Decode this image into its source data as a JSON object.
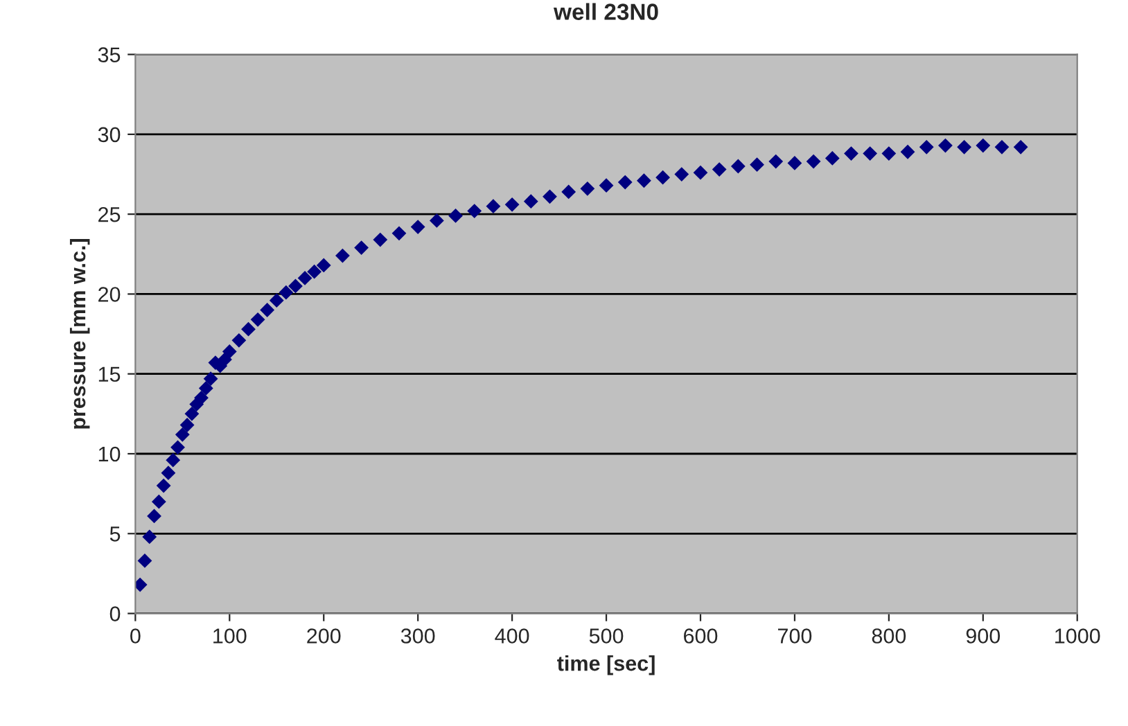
{
  "chart_data": {
    "type": "scatter",
    "title": "well 23N0",
    "xlabel": "time [sec]",
    "ylabel": "pressure [mm w.c.]",
    "xlim": [
      0,
      1000
    ],
    "xticks": [
      0,
      100,
      200,
      300,
      400,
      500,
      600,
      700,
      800,
      900,
      1000
    ],
    "ylim": [
      0,
      35
    ],
    "yticks": [
      0,
      5,
      10,
      15,
      20,
      25,
      30,
      35
    ],
    "grid": "y",
    "marker": "diamond",
    "legend": false,
    "series": [
      {
        "color": "#000080",
        "x": [
          5,
          10,
          15,
          20,
          25,
          30,
          35,
          40,
          45,
          50,
          55,
          60,
          65,
          70,
          75,
          80,
          85,
          90,
          95,
          100,
          110,
          120,
          130,
          140,
          150,
          160,
          170,
          180,
          190,
          200,
          220,
          240,
          260,
          280,
          300,
          320,
          340,
          360,
          380,
          400,
          420,
          440,
          460,
          480,
          500,
          520,
          540,
          560,
          580,
          600,
          620,
          640,
          660,
          680,
          700,
          720,
          740,
          760,
          780,
          800,
          820,
          840,
          860,
          880,
          900,
          920,
          940
        ],
        "values": [
          1.8,
          3.3,
          4.8,
          6.1,
          7.0,
          8.0,
          8.8,
          9.6,
          10.4,
          11.2,
          11.8,
          12.5,
          13.1,
          13.5,
          14.1,
          14.7,
          15.7,
          15.5,
          15.9,
          16.4,
          17.1,
          17.8,
          18.4,
          19.0,
          19.6,
          20.1,
          20.5,
          21.0,
          21.4,
          21.8,
          22.4,
          22.9,
          23.4,
          23.8,
          24.2,
          24.6,
          24.9,
          25.2,
          25.5,
          25.6,
          25.8,
          26.1,
          26.4,
          26.6,
          26.8,
          27.0,
          27.1,
          27.3,
          27.5,
          27.6,
          27.8,
          28.0,
          28.1,
          28.3,
          28.2,
          28.3,
          28.5,
          28.8,
          28.8,
          28.8,
          28.9,
          29.2,
          29.3,
          29.2,
          29.3,
          29.2,
          29.2
        ]
      }
    ]
  }
}
